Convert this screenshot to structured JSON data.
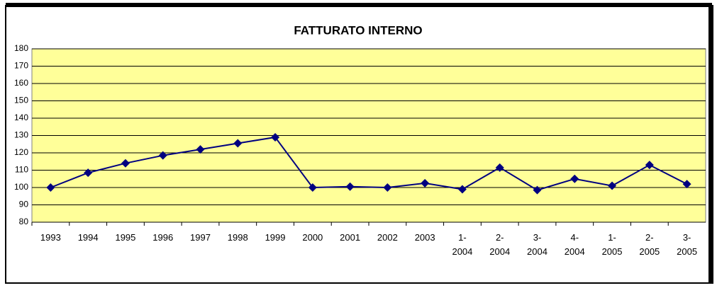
{
  "chart_data": {
    "type": "line",
    "title": "FATTURATO INTERNO",
    "categories": [
      "1993",
      "1994",
      "1995",
      "1996",
      "1997",
      "1998",
      "1999",
      "2000",
      "2001",
      "2002",
      "2003",
      "1- 2004",
      "2- 2004",
      "3- 2004",
      "4- 2004",
      "1- 2005",
      "2- 2005",
      "3- 2005"
    ],
    "series": [
      {
        "name": "FATTURATO INTERNO",
        "color": "#000080",
        "values": [
          100,
          108.5,
          114,
          118.5,
          122,
          125.5,
          129,
          100,
          100.5,
          100,
          102.5,
          99,
          111.5,
          98.5,
          105,
          101,
          113,
          102
        ]
      }
    ],
    "ylim": [
      80,
      180
    ],
    "yticks": [
      80,
      90,
      100,
      110,
      120,
      130,
      140,
      150,
      160,
      170,
      180
    ],
    "grid": true,
    "plot_background": "#FFFF99"
  }
}
